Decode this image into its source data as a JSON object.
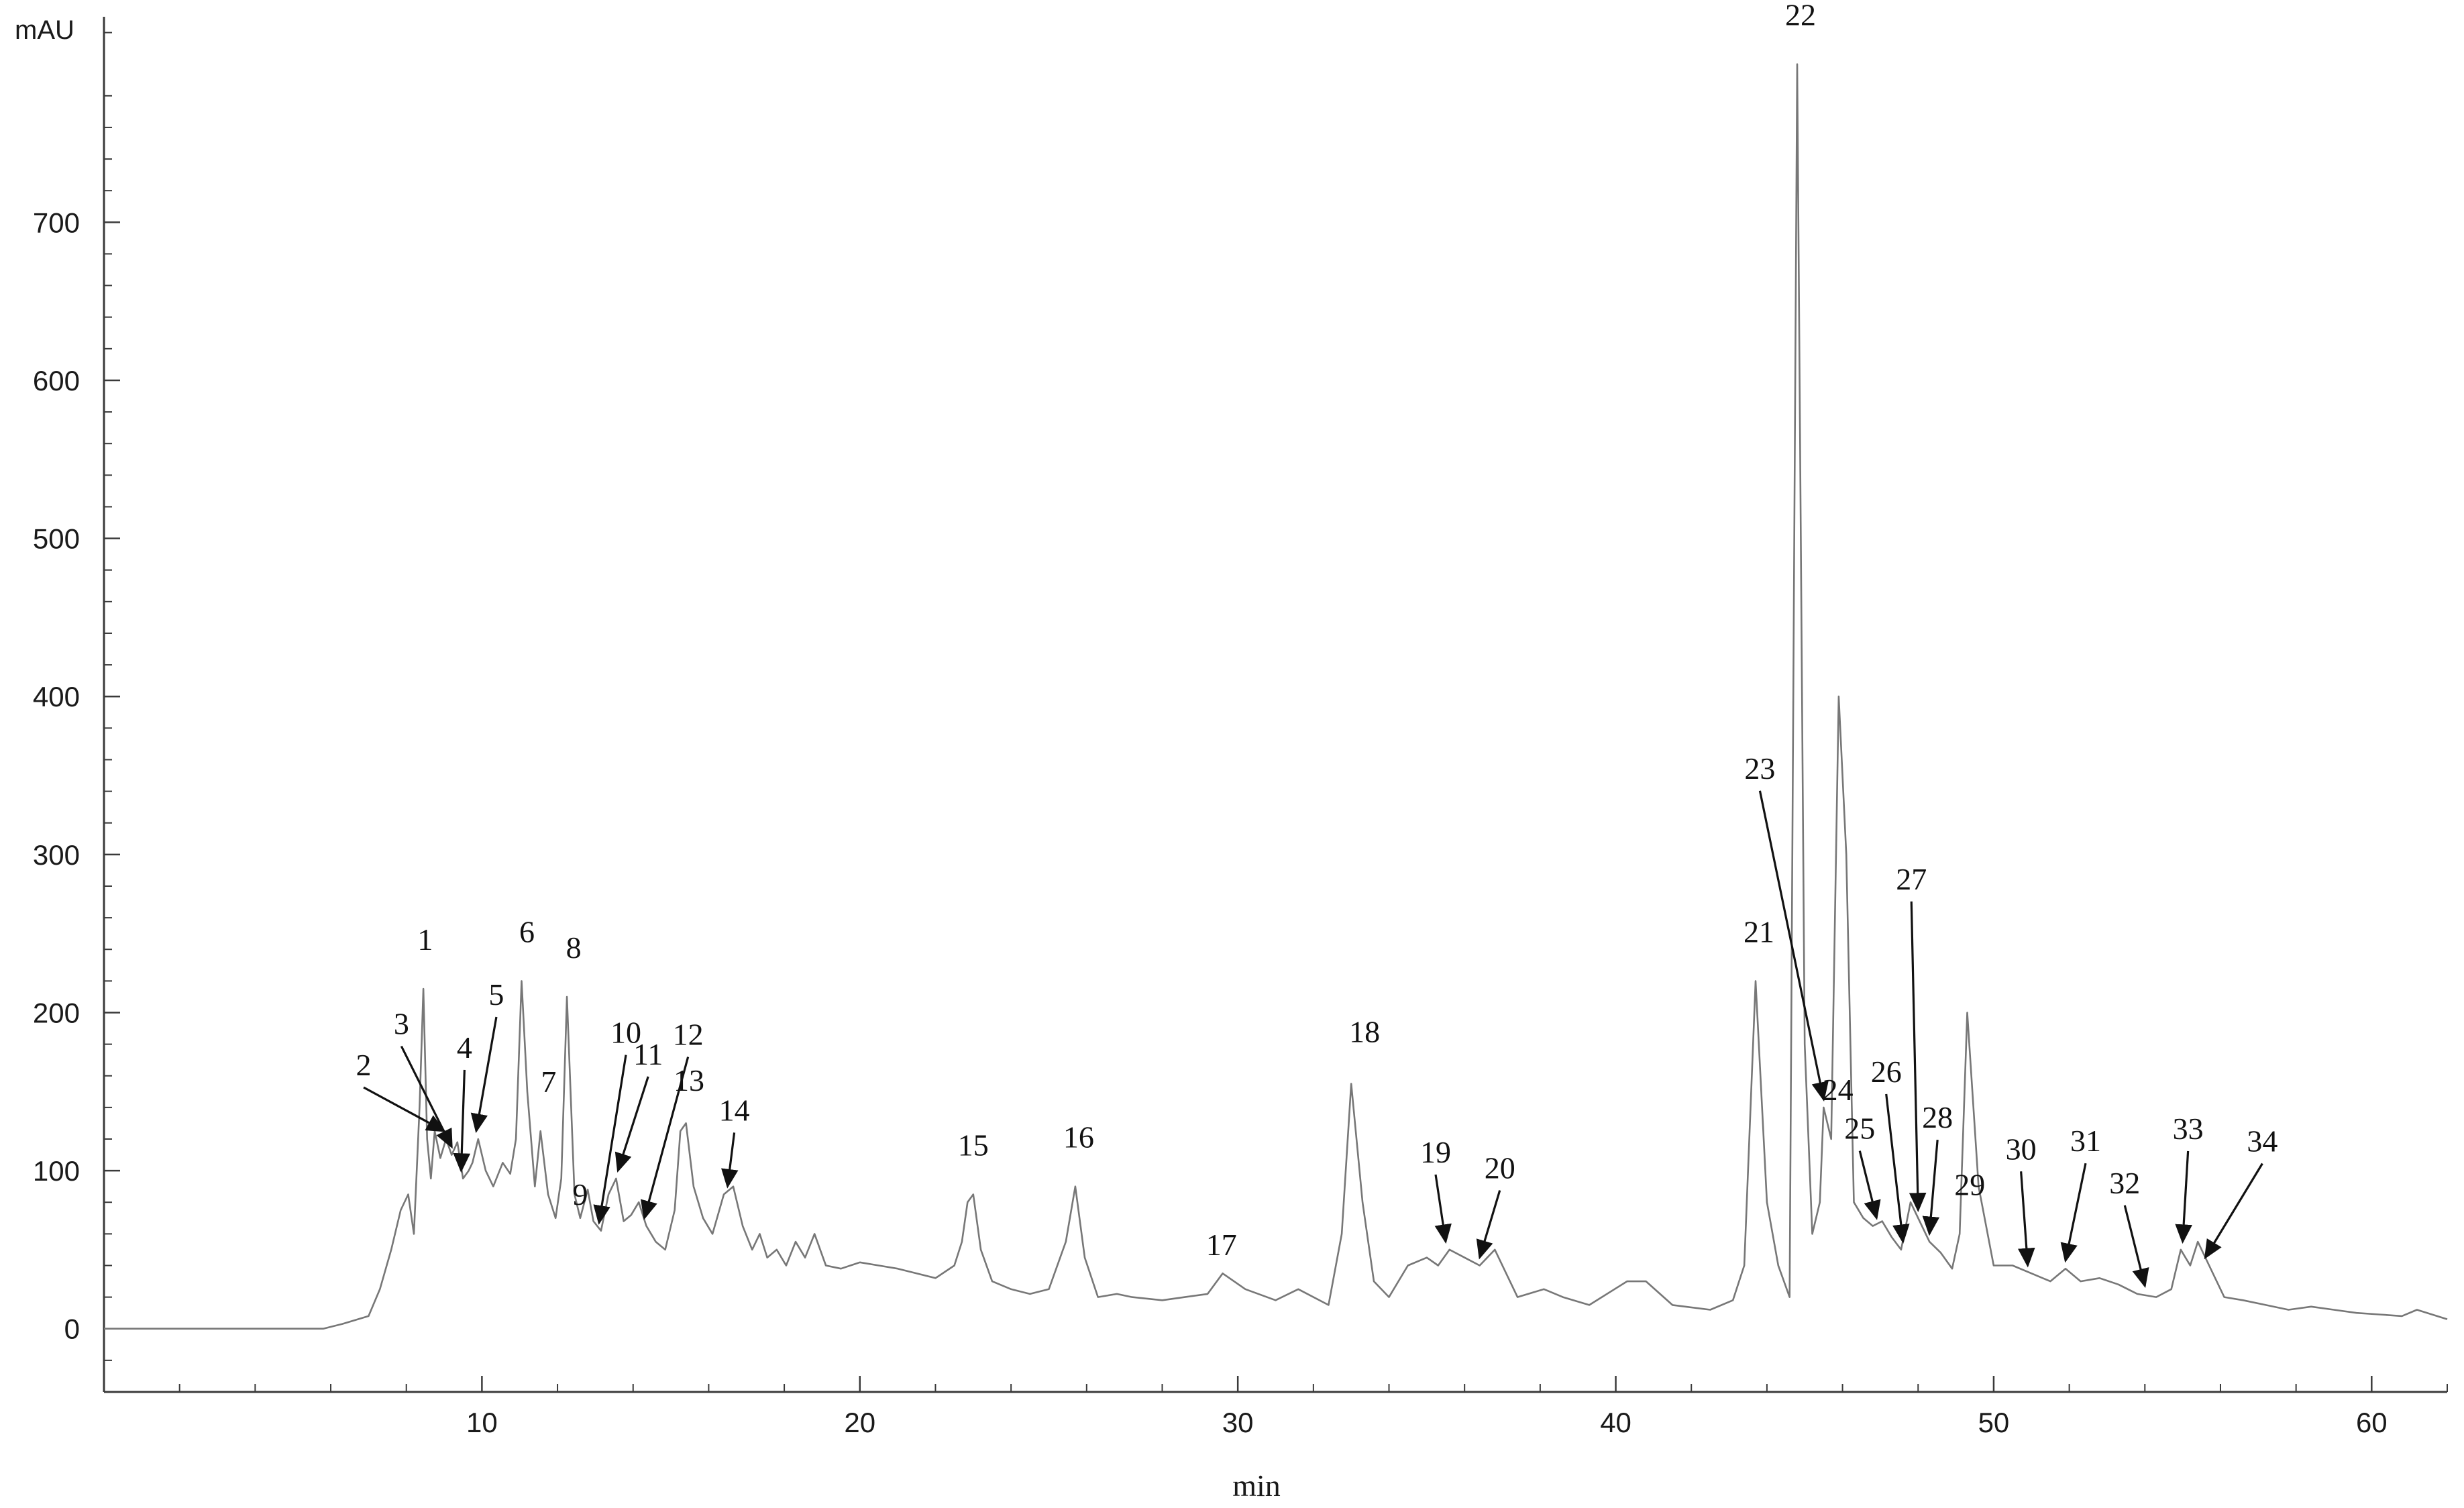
{
  "chart_data": {
    "type": "line",
    "title": "",
    "xlabel": "min",
    "ylabel": "mAU",
    "xlim": [
      0,
      62
    ],
    "ylim": [
      -40,
      830
    ],
    "x_ticks": [
      10,
      20,
      30,
      40,
      50,
      60
    ],
    "y_ticks": [
      0,
      100,
      200,
      300,
      400,
      500,
      600,
      700
    ],
    "grid": false,
    "legend": "none",
    "colors": {
      "trace": "#777777",
      "axis": "#3a3a3a",
      "annotation": "#111111"
    },
    "series": [
      {
        "x": [
          0,
          5.8,
          6.3,
          7.0,
          7.3,
          7.6,
          7.85,
          8.05,
          8.2,
          8.35,
          8.45,
          8.55,
          8.65,
          8.75,
          8.9,
          9.05,
          9.2,
          9.35,
          9.5,
          9.65,
          9.75,
          9.9,
          10.1,
          10.3,
          10.55,
          10.75,
          10.9,
          11.05,
          11.2,
          11.4,
          11.55,
          11.75,
          11.95,
          12.1,
          12.25,
          12.45,
          12.6,
          12.8,
          12.95,
          13.15,
          13.35,
          13.55,
          13.75,
          13.95,
          14.15,
          14.35,
          14.6,
          14.85,
          15.1,
          15.25,
          15.4,
          15.6,
          15.85,
          16.1,
          16.4,
          16.65,
          16.9,
          17.15,
          17.35,
          17.55,
          17.8,
          18.05,
          18.3,
          18.55,
          18.8,
          19.1,
          19.5,
          20.0,
          20.5,
          21.0,
          21.5,
          22.0,
          22.5,
          22.7,
          22.85,
          23.0,
          23.2,
          23.5,
          24.0,
          24.5,
          25.0,
          25.45,
          25.7,
          25.95,
          26.3,
          26.8,
          27.2,
          28.0,
          28.6,
          29.2,
          29.6,
          30.2,
          31.0,
          31.6,
          32.4,
          32.75,
          33.0,
          33.3,
          33.6,
          34.0,
          34.5,
          35.0,
          35.3,
          35.6,
          36.0,
          36.4,
          36.8,
          37.4,
          38.1,
          38.6,
          39.3,
          40.3,
          40.8,
          41.5,
          42.5,
          43.1,
          43.4,
          43.7,
          44.0,
          44.3,
          44.6,
          44.8,
          45.0,
          45.2,
          45.4,
          45.5,
          45.7,
          45.9,
          46.1,
          46.3,
          46.55,
          46.8,
          47.05,
          47.3,
          47.55,
          47.8,
          48.0,
          48.3,
          48.6,
          48.9,
          49.1,
          49.3,
          49.6,
          50.0,
          50.5,
          51.0,
          51.5,
          51.9,
          52.3,
          52.8,
          53.3,
          53.8,
          54.3,
          54.7,
          54.95,
          55.2,
          55.4,
          55.7,
          56.1,
          56.6,
          57.2,
          57.8,
          58.4,
          59.0,
          59.6,
          60.2,
          60.8,
          61.2,
          62
        ],
        "y": [
          0,
          0,
          3,
          8,
          25,
          50,
          75,
          85,
          60,
          140,
          215,
          120,
          95,
          125,
          108,
          120,
          110,
          118,
          95,
          100,
          105,
          120,
          100,
          90,
          105,
          98,
          120,
          220,
          150,
          90,
          125,
          85,
          70,
          95,
          210,
          85,
          70,
          88,
          68,
          62,
          85,
          95,
          68,
          72,
          80,
          65,
          55,
          50,
          75,
          125,
          130,
          90,
          70,
          60,
          85,
          90,
          65,
          50,
          60,
          45,
          50,
          40,
          55,
          45,
          60,
          40,
          38,
          42,
          40,
          38,
          35,
          32,
          40,
          55,
          80,
          85,
          50,
          30,
          25,
          22,
          25,
          55,
          90,
          45,
          20,
          22,
          20,
          18,
          20,
          22,
          35,
          25,
          18,
          25,
          15,
          60,
          155,
          80,
          30,
          20,
          40,
          45,
          40,
          50,
          45,
          40,
          50,
          20,
          25,
          20,
          15,
          30,
          30,
          15,
          12,
          18,
          40,
          220,
          80,
          40,
          20,
          800,
          180,
          60,
          80,
          140,
          120,
          400,
          300,
          80,
          70,
          65,
          68,
          58,
          50,
          80,
          70,
          55,
          48,
          38,
          60,
          200,
          90,
          40,
          40,
          35,
          30,
          38,
          30,
          32,
          28,
          22,
          20,
          25,
          50,
          40,
          55,
          40,
          20,
          18,
          15,
          12,
          14,
          12,
          10,
          9,
          8,
          12,
          6
        ]
      }
    ],
    "peaks": [
      {
        "label": "1",
        "time": 8.5
      },
      {
        "label": "2",
        "time": 9.0
      },
      {
        "label": "3",
        "time": 9.2
      },
      {
        "label": "4",
        "time": 9.45
      },
      {
        "label": "5",
        "time": 9.85
      },
      {
        "label": "6",
        "time": 11.05
      },
      {
        "label": "7",
        "time": 11.5
      },
      {
        "label": "8",
        "time": 12.25
      },
      {
        "label": "9",
        "time": 12.6
      },
      {
        "label": "10",
        "time": 13.1
      },
      {
        "label": "11",
        "time": 13.6
      },
      {
        "label": "12",
        "time": 14.3
      },
      {
        "label": "13",
        "time": 15.3
      },
      {
        "label": "14",
        "time": 16.5
      },
      {
        "label": "15",
        "time": 23.0
      },
      {
        "label": "16",
        "time": 25.7
      },
      {
        "label": "17",
        "time": 29.3
      },
      {
        "label": "18",
        "time": 33.0
      },
      {
        "label": "19",
        "time": 35.5
      },
      {
        "label": "20",
        "time": 36.4
      },
      {
        "label": "21",
        "time": 43.7
      },
      {
        "label": "22",
        "time": 44.8
      },
      {
        "label": "23",
        "time": 45.5
      },
      {
        "label": "24",
        "time": 45.7
      },
      {
        "label": "25",
        "time": 46.9
      },
      {
        "label": "26",
        "time": 47.6
      },
      {
        "label": "27",
        "time": 48.0
      },
      {
        "label": "28",
        "time": 48.3
      },
      {
        "label": "29",
        "time": 49.1
      },
      {
        "label": "30",
        "time": 50.9
      },
      {
        "label": "31",
        "time": 51.9
      },
      {
        "label": "32",
        "time": 54.0
      },
      {
        "label": "33",
        "time": 55.0
      },
      {
        "label": "34",
        "time": 55.6
      }
    ]
  }
}
